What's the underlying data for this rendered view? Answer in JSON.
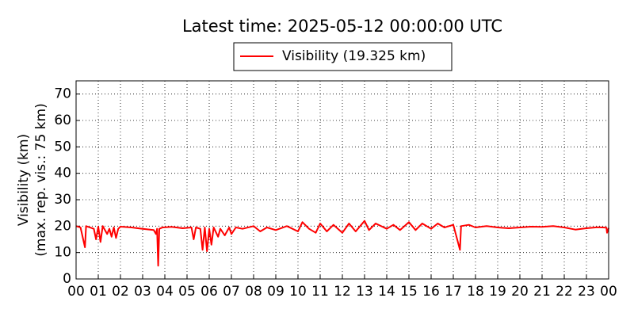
{
  "chart_data": {
    "type": "line",
    "title": "Latest time: 2025-05-12 00:00:00 UTC",
    "y_label": [
      "Visibility (km)",
      "(max. rep. vis.: 75 km)"
    ],
    "xlim": [
      0,
      24
    ],
    "ylim": [
      0,
      75
    ],
    "yticks": [
      0,
      10,
      20,
      30,
      40,
      50,
      60,
      70
    ],
    "xticks": [
      {
        "value": 0,
        "label": "00"
      },
      {
        "value": 1,
        "label": "01"
      },
      {
        "value": 2,
        "label": "02"
      },
      {
        "value": 3,
        "label": "03"
      },
      {
        "value": 4,
        "label": "04"
      },
      {
        "value": 5,
        "label": "05"
      },
      {
        "value": 6,
        "label": "06"
      },
      {
        "value": 7,
        "label": "07"
      },
      {
        "value": 8,
        "label": "08"
      },
      {
        "value": 9,
        "label": "09"
      },
      {
        "value": 10,
        "label": "10"
      },
      {
        "value": 11,
        "label": "11"
      },
      {
        "value": 12,
        "label": "12"
      },
      {
        "value": 13,
        "label": "13"
      },
      {
        "value": 14,
        "label": "14"
      },
      {
        "value": 15,
        "label": "15"
      },
      {
        "value": 16,
        "label": "16"
      },
      {
        "value": 17,
        "label": "17"
      },
      {
        "value": 18,
        "label": "18"
      },
      {
        "value": 19,
        "label": "19"
      },
      {
        "value": 20,
        "label": "20"
      },
      {
        "value": 21,
        "label": "21"
      },
      {
        "value": 22,
        "label": "22"
      },
      {
        "value": 23,
        "label": "23"
      },
      {
        "value": 24,
        "label": "00"
      }
    ],
    "grid": true,
    "legend": "top-center",
    "x": [
      0,
      0.2,
      0.4,
      0.45,
      0.8,
      0.9,
      1.0,
      1.1,
      1.2,
      1.4,
      1.5,
      1.6,
      1.7,
      1.8,
      1.9,
      2.0,
      2.5,
      3.0,
      3.5,
      3.6,
      3.65,
      3.7,
      3.75,
      3.9,
      4.3,
      4.8,
      5.2,
      5.3,
      5.4,
      5.6,
      5.7,
      5.8,
      5.9,
      6.0,
      6.1,
      6.2,
      6.4,
      6.5,
      6.7,
      6.9,
      7.0,
      7.2,
      7.5,
      8,
      8.3,
      8.6,
      9,
      9.5,
      10,
      10.2,
      10.5,
      10.8,
      11,
      11.3,
      11.6,
      12,
      12.3,
      12.6,
      13,
      13.2,
      13.5,
      14,
      14.3,
      14.6,
      15,
      15.3,
      15.6,
      16,
      16.3,
      16.6,
      17,
      17.3,
      17.35,
      17.7,
      18,
      18.5,
      19,
      19.5,
      20,
      20.5,
      21,
      21.5,
      22,
      22.5,
      23,
      23.5,
      23.9,
      23.93,
      24
    ],
    "series": [
      {
        "name": "Visibility (19.325 km)",
        "color": "#ff0000",
        "values": [
          20,
          19.5,
          12,
          20,
          19,
          15,
          19.8,
          14,
          20,
          17,
          19,
          16,
          19.5,
          15.5,
          19,
          19.8,
          19.5,
          19,
          18.5,
          17,
          19,
          5,
          19,
          19.5,
          19.7,
          19.2,
          19.5,
          15,
          19.5,
          19,
          11,
          19.5,
          10.5,
          19,
          13,
          19.5,
          16,
          19,
          16.5,
          19.5,
          17,
          19.5,
          19,
          20,
          18,
          19.5,
          18.5,
          20,
          18,
          21.5,
          19,
          17.5,
          21,
          18,
          20.5,
          17.5,
          21,
          18,
          22,
          18.5,
          21,
          19,
          20.5,
          18.5,
          21.5,
          18.5,
          21,
          19,
          21,
          19.5,
          20.5,
          11,
          20,
          20.5,
          19.5,
          20,
          19.5,
          19.2,
          19.5,
          19.8,
          19.7,
          20,
          19.5,
          18.7,
          19.2,
          19.6,
          19.4,
          17.5,
          19.3
        ]
      }
    ]
  }
}
